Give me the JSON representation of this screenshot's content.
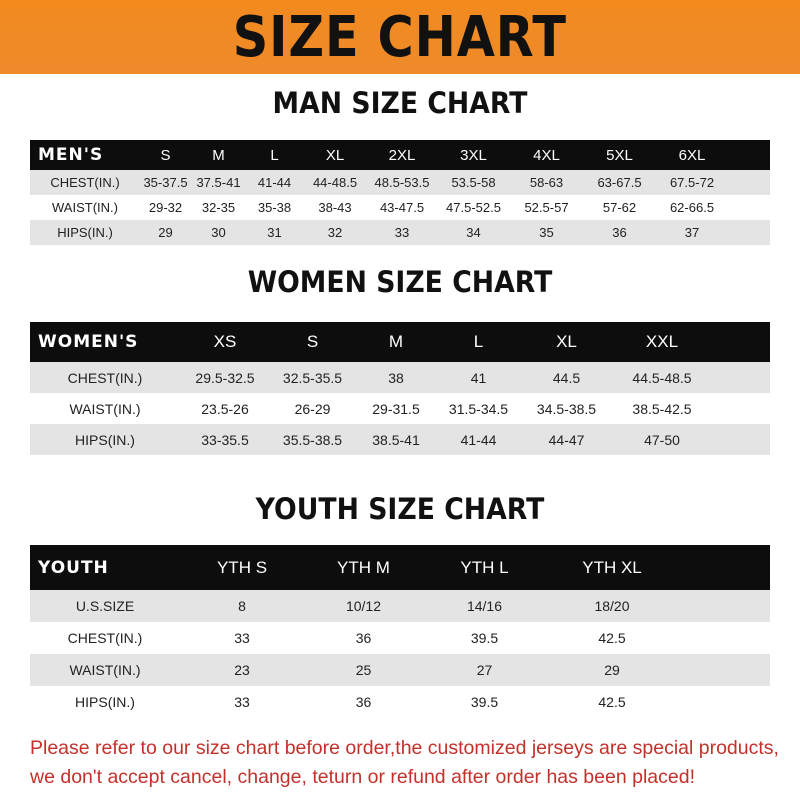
{
  "banner": {
    "title": "SIZE CHART",
    "color": "#f08a24"
  },
  "men": {
    "title": "MAN SIZE CHART",
    "header": "MEN'S",
    "sizes": [
      "S",
      "M",
      "L",
      "XL",
      "2XL",
      "3XL",
      "4XL",
      "5XL",
      "6XL"
    ],
    "rows": [
      {
        "label": "CHEST(IN.)",
        "values": [
          "35-37.5",
          "37.5-41",
          "41-44",
          "44-48.5",
          "48.5-53.5",
          "53.5-58",
          "58-63",
          "63-67.5",
          "67.5-72"
        ]
      },
      {
        "label": "WAIST(IN.)",
        "values": [
          "29-32",
          "32-35",
          "35-38",
          "38-43",
          "43-47.5",
          "47.5-52.5",
          "52.5-57",
          "57-62",
          "62-66.5"
        ]
      },
      {
        "label": "HIPS(IN.)",
        "values": [
          "29",
          "30",
          "31",
          "32",
          "33",
          "34",
          "35",
          "36",
          "37"
        ]
      }
    ]
  },
  "women": {
    "title": "WOMEN SIZE CHART",
    "header": "WOMEN'S",
    "sizes": [
      "XS",
      "S",
      "M",
      "L",
      "XL",
      "XXL"
    ],
    "rows": [
      {
        "label": "CHEST(IN.)",
        "values": [
          "29.5-32.5",
          "32.5-35.5",
          "38",
          "41",
          "44.5",
          "44.5-48.5"
        ]
      },
      {
        "label": "WAIST(IN.)",
        "values": [
          "23.5-26",
          "26-29",
          "29-31.5",
          "31.5-34.5",
          "34.5-38.5",
          "38.5-42.5"
        ]
      },
      {
        "label": "HIPS(IN.)",
        "values": [
          "33-35.5",
          "35.5-38.5",
          "38.5-41",
          "41-44",
          "44-47",
          "47-50"
        ]
      }
    ]
  },
  "youth": {
    "title": "YOUTH SIZE CHART",
    "header": "YOUTH",
    "sizes": [
      "YTH S",
      "YTH M",
      "YTH L",
      "YTH XL"
    ],
    "rows": [
      {
        "label": "U.S.SIZE",
        "values": [
          "8",
          "10/12",
          "14/16",
          "18/20"
        ]
      },
      {
        "label": "CHEST(IN.)",
        "values": [
          "33",
          "36",
          "39.5",
          "42.5"
        ]
      },
      {
        "label": "WAIST(IN.)",
        "values": [
          "23",
          "25",
          "27",
          "29"
        ]
      },
      {
        "label": "HIPS(IN.)",
        "values": [
          "33",
          "36",
          "39.5",
          "42.5"
        ]
      }
    ]
  },
  "notice": {
    "line1": "Please refer to our size chart before order,the customized jerseys are special products,",
    "line2": "we don't accept cancel, change, teturn or refund after order has been placed!"
  }
}
